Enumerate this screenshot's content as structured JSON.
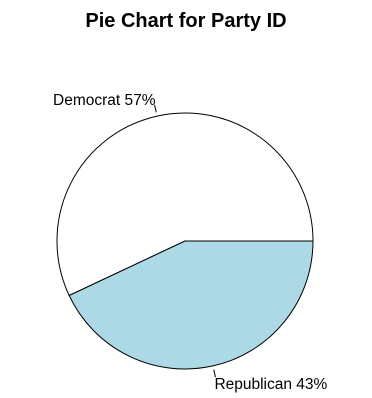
{
  "chart_data": {
    "type": "pie",
    "title": "Pie Chart for Party ID",
    "slices": [
      {
        "label": "Democrat 57%",
        "category": "Democrat",
        "value": 57,
        "color": "#ffffff"
      },
      {
        "label": "Republican 43%",
        "category": "Republican",
        "value": 43,
        "color": "#add8e6"
      }
    ],
    "start_angle_deg": 0,
    "direction": "counterclockwise",
    "border_color": "#000000"
  }
}
